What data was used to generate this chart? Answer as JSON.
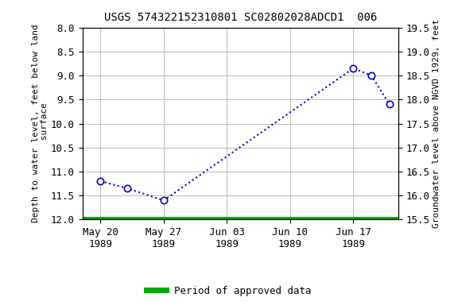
{
  "title": "USGS 574322152310801 SC02802028ADCD1  006",
  "ylabel_left": "Depth to water level, feet below land\n surface",
  "ylabel_right": "Groundwater level above NGVD 1929, feet",
  "y_ticks_left": [
    8.0,
    8.5,
    9.0,
    9.5,
    10.0,
    10.5,
    11.0,
    11.5,
    12.0
  ],
  "y_ticks_right": [
    15.5,
    16.0,
    16.5,
    17.0,
    17.5,
    18.0,
    18.5,
    19.0,
    19.5
  ],
  "ylim_left_bottom": 12.0,
  "ylim_left_top": 8.0,
  "ylim_right_bottom": 15.5,
  "ylim_right_top": 19.5,
  "tick_positions": [
    2,
    9,
    16,
    23,
    30
  ],
  "tick_labels": [
    "May 20\n1989",
    "May 27\n1989",
    "Jun 03\n1989",
    "Jun 10\n1989",
    "Jun 17\n1989"
  ],
  "xlim": [
    0,
    35
  ],
  "x_data": [
    2,
    5,
    9,
    30,
    32,
    34
  ],
  "y_data": [
    11.2,
    11.35,
    11.6,
    8.85,
    9.0,
    9.6
  ],
  "marked_indices": [
    0,
    1,
    2,
    3,
    4,
    5
  ],
  "line_color": "#0000cc",
  "marker_facecolor": "#ffffff",
  "marker_edgecolor": "#0000cc",
  "green_line_color": "#00aa00",
  "green_line_y": 12.0,
  "background_color": "#ffffff",
  "grid_color": "#b0b0b0",
  "title_fontsize": 10,
  "axis_label_fontsize": 8,
  "tick_fontsize": 9,
  "legend_label": "Period of approved data",
  "legend_linewidth": 5
}
